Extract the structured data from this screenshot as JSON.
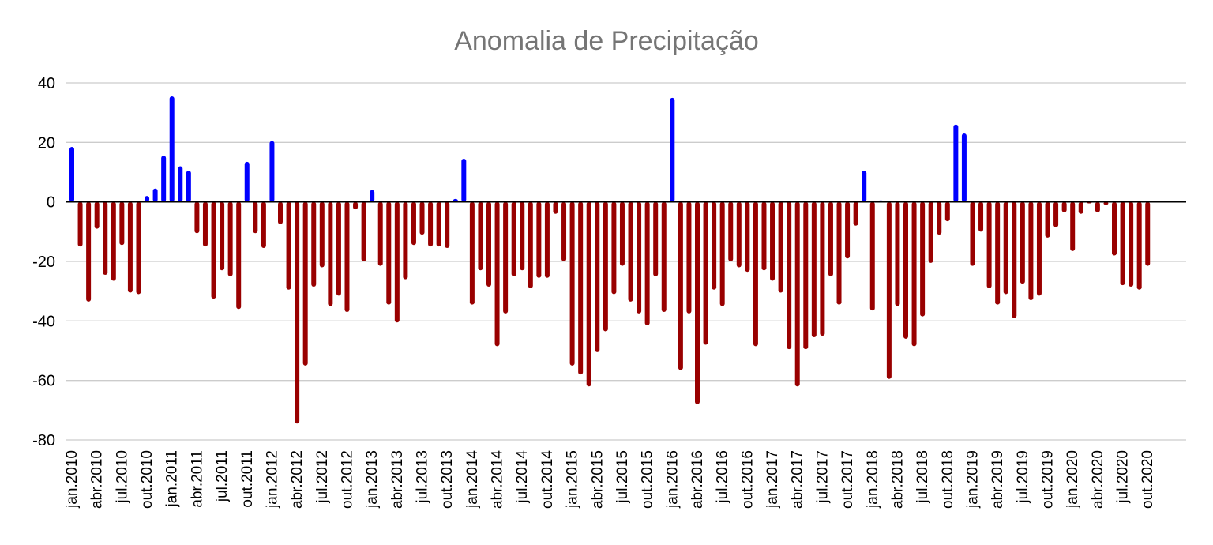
{
  "chart_data": {
    "type": "bar",
    "title": "Anomalia de Precipitação",
    "xlabel": "",
    "ylabel": "",
    "ylim": [
      -80,
      40
    ],
    "yticks": [
      40,
      20,
      0,
      -20,
      -40,
      -60,
      -80
    ],
    "grid": true,
    "legend": "none",
    "colors": {
      "positive": "#0000ff",
      "negative": "#990000"
    },
    "tick_labels": [
      "jan.2010",
      "abr.2010",
      "jul.2010",
      "out.2010",
      "jan.2011",
      "abr.2011",
      "jul.2011",
      "out.2011",
      "jan.2012",
      "abr.2012",
      "jul.2012",
      "out.2012",
      "jan.2013",
      "abr.2013",
      "jul.2013",
      "out.2013",
      "jan.2014",
      "abr.2014",
      "jul.2014",
      "out.2014",
      "jan.2015",
      "abr.2015",
      "jul.2015",
      "out.2015",
      "jan.2016",
      "abr.2016",
      "jul.2016",
      "out.2016",
      "jan.2017",
      "abr.2017",
      "jul.2017",
      "out.2017",
      "jan.2018",
      "abr.2018",
      "jul.2018",
      "out.2018",
      "jan.2019",
      "abr.2019",
      "jul.2019",
      "out.2019",
      "jan.2020",
      "abr.2020",
      "jul.2020",
      "out.2020"
    ],
    "values": [
      18.5,
      -15,
      -33.5,
      -9,
      -24.5,
      -26.5,
      -14.5,
      -30.5,
      -31,
      2,
      4.5,
      15.5,
      35.5,
      12,
      10.5,
      -10.5,
      -15,
      -32.5,
      -23,
      -25,
      -36,
      13.5,
      -10.5,
      -15.5,
      20.5,
      -7.5,
      -29.5,
      -74.5,
      -55,
      -28.5,
      -22,
      -35,
      -31.5,
      -37,
      -2.5,
      -20,
      4,
      -21.5,
      -34.5,
      -40.5,
      -26,
      -14.5,
      -11,
      -15,
      -15,
      -15.5,
      1,
      14.5,
      -34.5,
      -23,
      -28.5,
      -48.5,
      -37.5,
      -25,
      -23,
      -29,
      -25.5,
      -25.5,
      -4,
      -20,
      -55,
      -58,
      -62,
      -50.5,
      -43.5,
      -31,
      -21.5,
      -33.5,
      -37.5,
      -41.5,
      -25,
      -37,
      35,
      -56.5,
      -37.5,
      -68,
      -48,
      -29.5,
      -35,
      -20,
      -22,
      -23.5,
      -48.5,
      -23,
      -26.5,
      -30.5,
      -49.5,
      -62,
      -49.5,
      -45.5,
      -45,
      -25,
      -34.5,
      -19,
      -8,
      10.5,
      -36.5,
      0.5,
      -59.5,
      -35,
      -46,
      -48.5,
      -38.5,
      -20.5,
      -11,
      -6.5,
      26,
      23,
      -21.5,
      -10,
      -29,
      -34.5,
      -31,
      -39,
      -27.5,
      -33,
      -31.5,
      -12,
      -8.5,
      -3.5,
      -16.5,
      -4,
      -0.5,
      -3.5,
      -1,
      -18,
      -28,
      -28.5,
      -29.5,
      -21.5
    ]
  }
}
